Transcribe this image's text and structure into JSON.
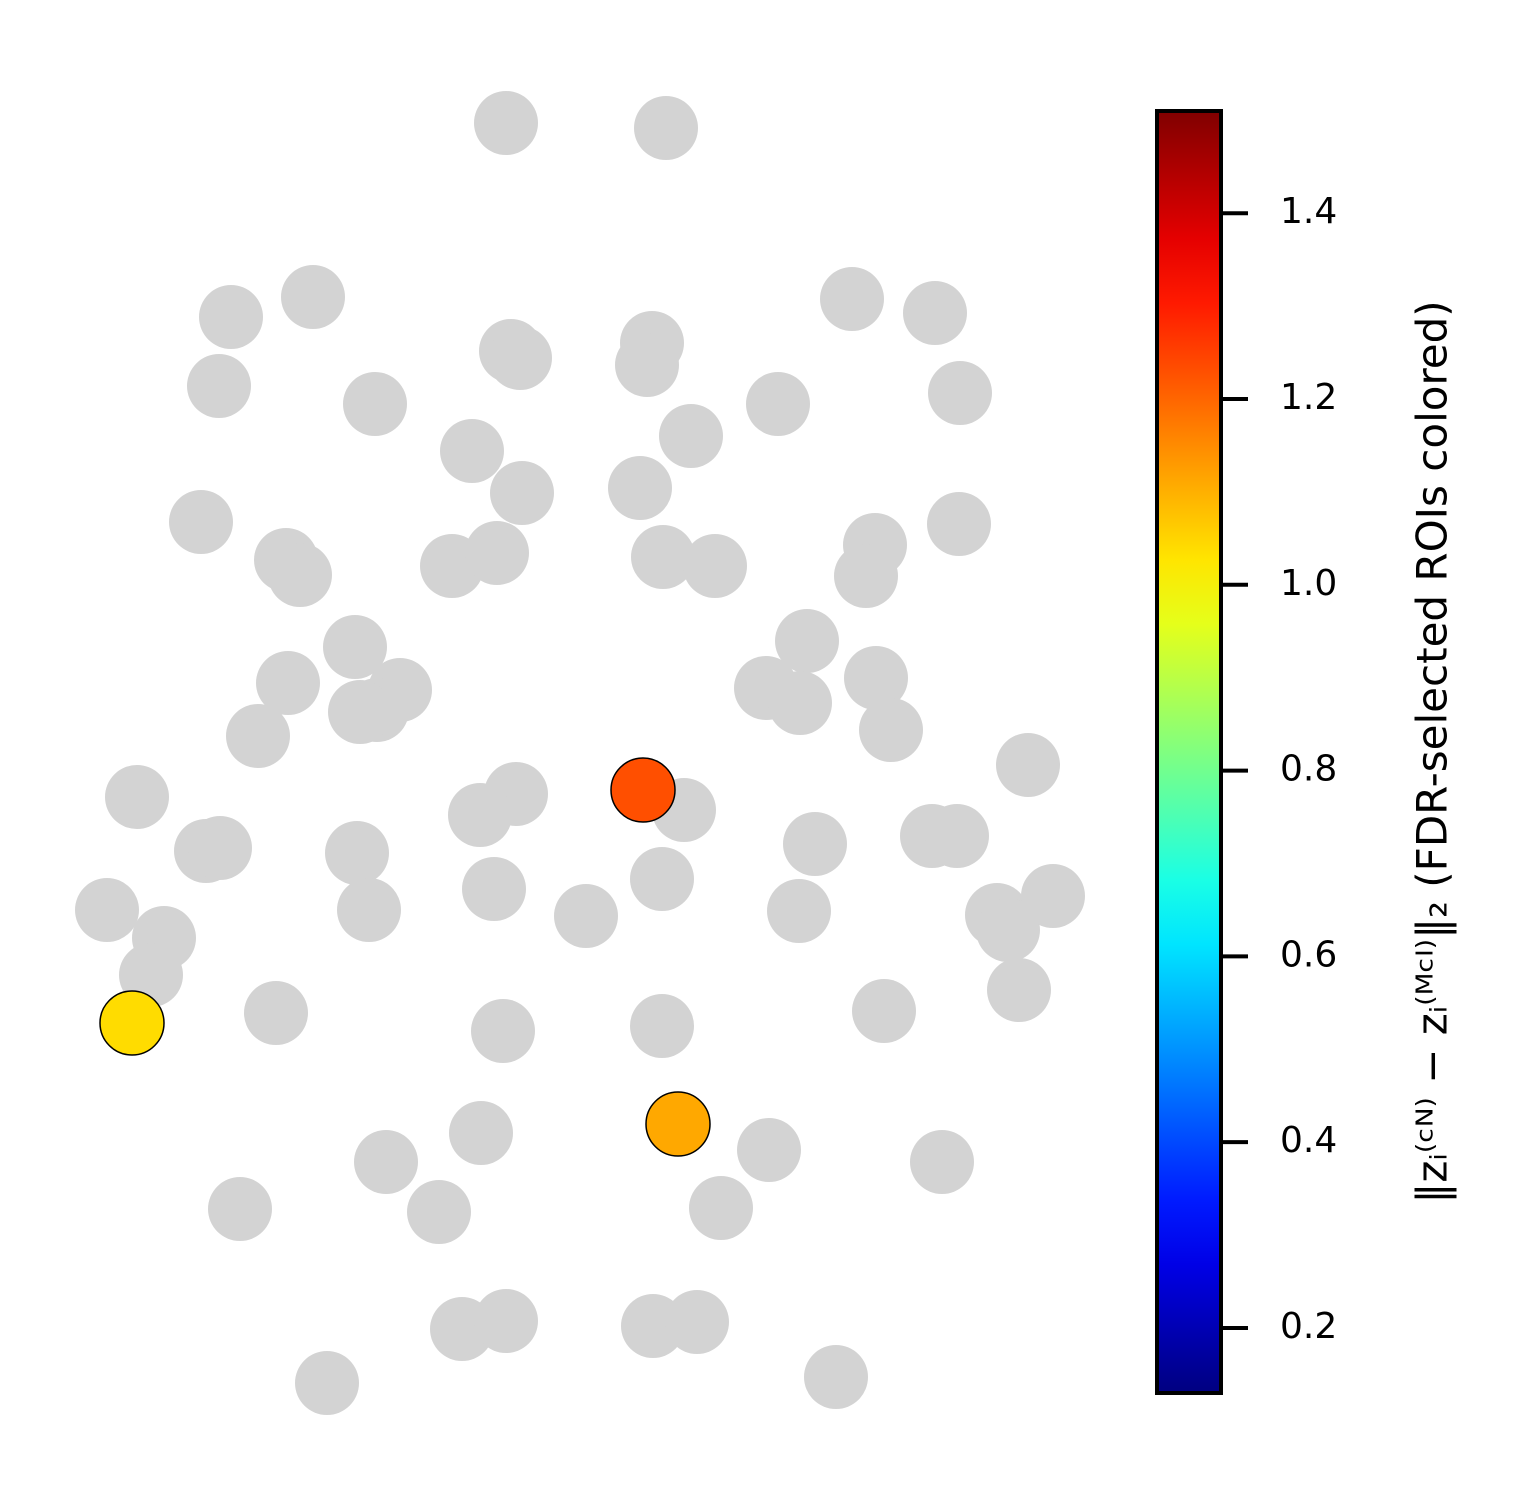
{
  "chart_data": {
    "type": "scatter",
    "xlim": [
      60,
      1100
    ],
    "ylim": [
      66,
      1426
    ],
    "colormap": "jet",
    "clim": [
      0.13,
      1.51
    ],
    "colorbar_label": "‖zᵢ⁽ᶜᴺ⁾ − zᵢ⁽ᴹᶜᴵ⁾‖₂ (FDR-selected ROIs colored)",
    "colorbar_ticks": [
      0.2,
      0.4,
      0.6,
      0.8,
      {
        "value": 1,
        "label": "1.0"
      },
      1.2,
      1.4
    ],
    "series": [
      {
        "color": "#d3d3d3",
        "x": [
          506,
          666,
          313,
          231,
          852,
          935,
          511,
          520,
          652,
          647,
          219,
          375,
          778,
          960,
          472,
          691,
          522,
          640,
          201,
          959,
          286,
          300,
          452,
          497,
          663,
          715,
          875,
          866,
          355,
          807,
          288,
          400,
          377,
          360,
          766,
          800,
          876,
          891,
          258,
          1028,
          137,
          516,
          480,
          684,
          206,
          220,
          357,
          815,
          932,
          957,
          107,
          164,
          151,
          369,
          494,
          586,
          662,
          799,
          997,
          1008,
          1053,
          1019,
          276,
          503,
          662,
          884,
          481,
          386,
          769,
          942,
          240,
          439,
          721,
          462,
          506,
          653,
          697,
          327,
          836
        ],
        "values": [
          1383,
          1378,
          1209,
          1189,
          1207,
          1193,
          1155,
          1148,
          1163,
          1141,
          1120,
          1102,
          1102,
          1113,
          1055,
          1070,
          1013,
          1018,
          984,
          982,
          946,
          931,
          940,
          953,
          949,
          940,
          961,
          930,
          859,
          865,
          823,
          816,
          796,
          794,
          818,
          803,
          828,
          776,
          770,
          741,
          709,
          712,
          691,
          696,
          655,
          658,
          653,
          662,
          670,
          670,
          596,
          568,
          531,
          596,
          617,
          590,
          627,
          595,
          591,
          576,
          610,
          516,
          493,
          475,
          480,
          495,
          373,
          344,
          356,
          344,
          297,
          294,
          298,
          177,
          185,
          180,
          184,
          123,
          129
        ]
      },
      {
        "x": [
          643,
          132,
          678
        ],
        "values": [
          716,
          483,
          382
        ],
        "color_values": [
          1.23,
          1.04,
          1.11
        ],
        "edgecolor": "#000000"
      }
    ]
  }
}
